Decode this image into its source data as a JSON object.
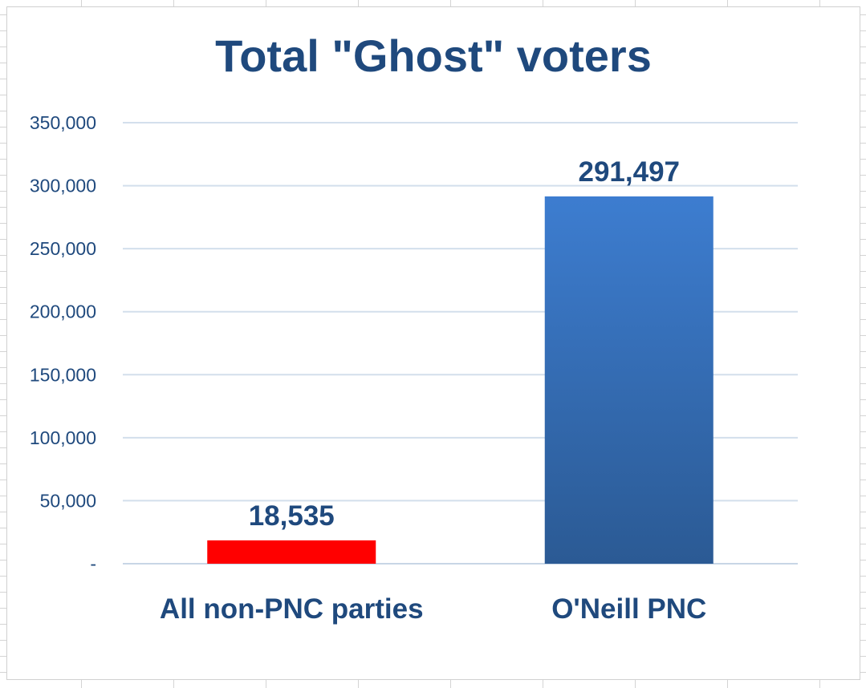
{
  "chart_data": {
    "type": "bar",
    "title": "Total \"Ghost\" voters",
    "xlabel": "",
    "ylabel": "",
    "categories": [
      "All non-PNC parties",
      "O'Neill PNC"
    ],
    "values": [
      18535,
      291497
    ],
    "data_labels": [
      "18,535",
      "291,497"
    ],
    "bar_colors": [
      "#ff0000",
      "#3a7acc"
    ],
    "ylim": [
      0,
      350000
    ],
    "y_ticks": [
      0,
      50000,
      100000,
      150000,
      200000,
      250000,
      300000,
      350000
    ],
    "y_tick_labels": [
      "-",
      "50,000",
      "100,000",
      "150,000",
      "200,000",
      "250,000",
      "300,000",
      "350,000"
    ],
    "grid": true,
    "legend": false
  }
}
